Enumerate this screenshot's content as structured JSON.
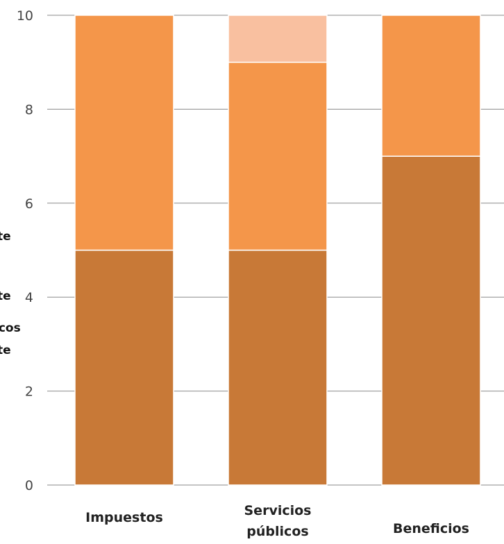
{
  "chart_data": {
    "type": "bar",
    "stacked": true,
    "categories": [
      "Impuestos",
      "Servicios públicos",
      "Beneficios"
    ],
    "category_label_lines": [
      [
        "Impuestos"
      ],
      [
        "Servicios",
        "públicos"
      ],
      [
        "Beneficios"
      ]
    ],
    "series": [
      {
        "values": [
          5,
          5,
          7
        ],
        "color": "#c87937"
      },
      {
        "values": [
          5,
          4,
          3
        ],
        "color": "#f4964a"
      },
      {
        "values": [
          0,
          1,
          0
        ],
        "color": "#f9c0a0"
      }
    ],
    "ylim": [
      0,
      10
    ],
    "yticks": [
      0,
      2,
      4,
      6,
      8,
      10
    ],
    "ytick_labels": [
      "0",
      "2",
      "4",
      "6",
      "8",
      "10"
    ],
    "grid": true,
    "legend_position": "left",
    "legend_fragments": [
      "te",
      "te",
      "icos",
      "te"
    ],
    "title": "",
    "xlabel": "",
    "ylabel": ""
  }
}
